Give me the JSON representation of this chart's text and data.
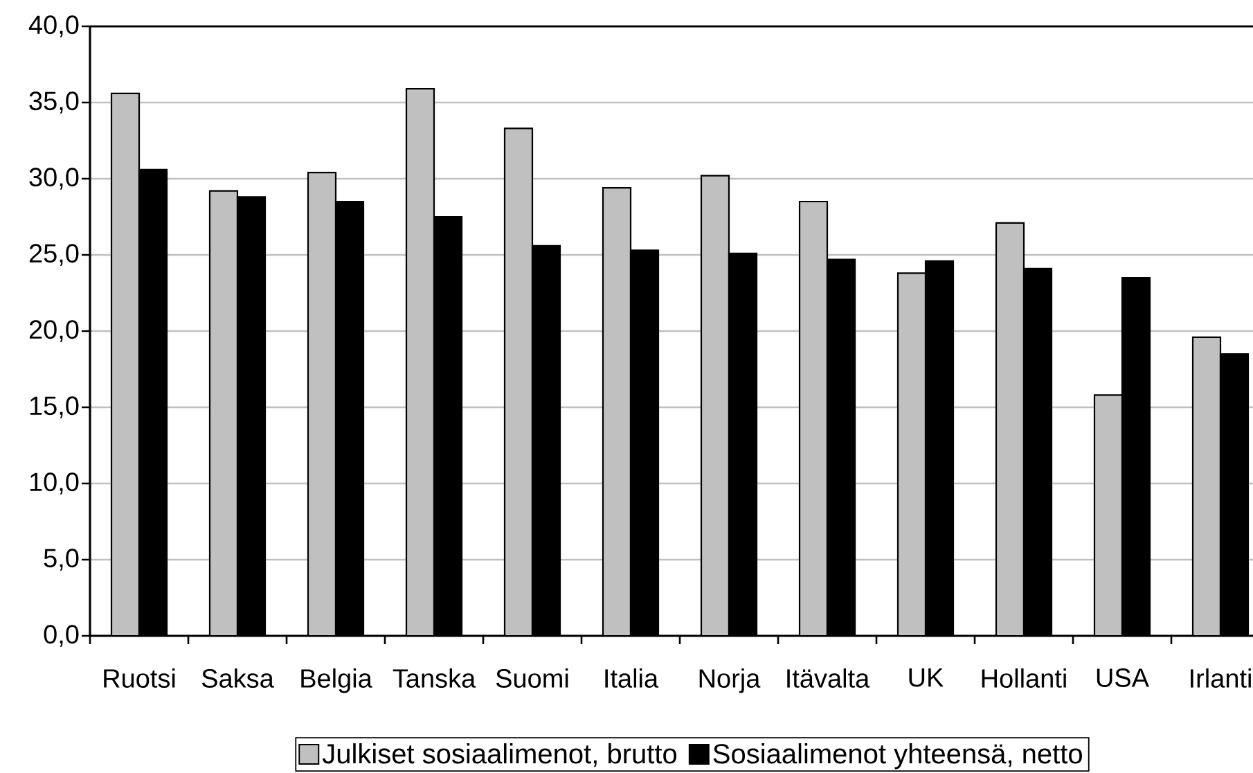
{
  "chart_data": {
    "type": "bar",
    "categories": [
      "Ruotsi",
      "Saksa",
      "Belgia",
      "Tanska",
      "Suomi",
      "Italia",
      "Norja",
      "Itävalta",
      "UK",
      "Hollanti",
      "USA",
      "Irlanti"
    ],
    "series": [
      {
        "name": "Julkiset sosiaalimenot, brutto",
        "color": "#c0c0c0",
        "values": [
          35.6,
          29.2,
          30.4,
          35.9,
          33.3,
          29.4,
          30.2,
          28.5,
          23.8,
          27.1,
          15.8,
          19.6
        ]
      },
      {
        "name": "Sosiaalimenot yhteensä, netto",
        "color": "#000000",
        "values": [
          30.6,
          28.8,
          28.5,
          27.5,
          25.6,
          25.3,
          25.1,
          24.7,
          24.6,
          24.1,
          23.5,
          18.5
        ]
      }
    ],
    "ylim": [
      0,
      40
    ],
    "yticks": [
      {
        "value": 0,
        "label": "0,0"
      },
      {
        "value": 5,
        "label": "5,0"
      },
      {
        "value": 10,
        "label": "10,0"
      },
      {
        "value": 15,
        "label": "15,0"
      },
      {
        "value": 20,
        "label": "20,0"
      },
      {
        "value": 25,
        "label": "25,0"
      },
      {
        "value": 30,
        "label": "30,0"
      },
      {
        "value": 35,
        "label": "35,0"
      },
      {
        "value": 40,
        "label": "40,0"
      }
    ],
    "grid": "y",
    "legend": "bottom"
  }
}
